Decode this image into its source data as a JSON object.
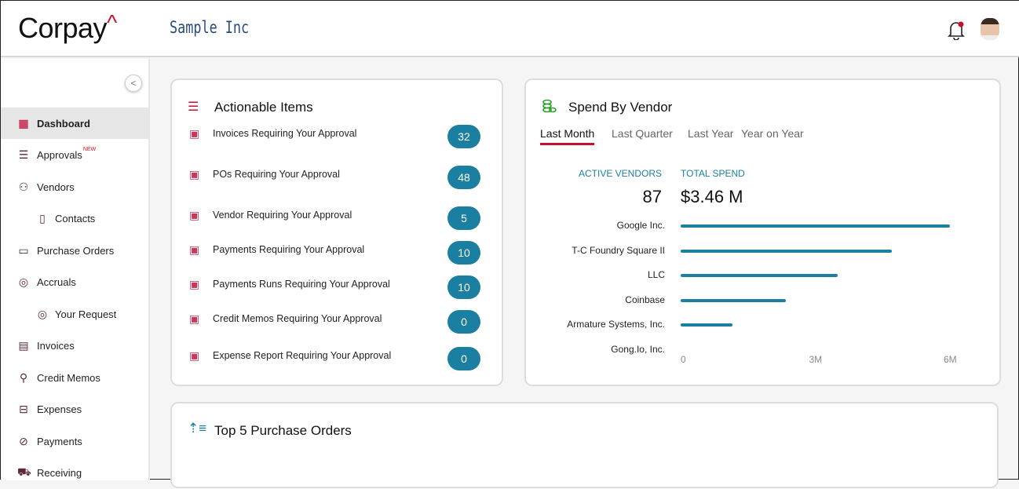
{
  "header": {
    "logo": "Corpay",
    "logo_mark": "^",
    "company": "Sample Inc"
  },
  "sidebar": {
    "items": [
      {
        "label": "Dashboard",
        "icon": "dashboard-icon",
        "active": true
      },
      {
        "label": "Approvals",
        "icon": "checklist-icon",
        "badge": "NEW"
      },
      {
        "label": "Vendors",
        "icon": "users-icon"
      },
      {
        "label": "Contacts",
        "icon": "contacts-icon",
        "sub": true
      },
      {
        "label": "Purchase Orders",
        "icon": "wallet-icon"
      },
      {
        "label": "Accruals",
        "icon": "target-icon"
      },
      {
        "label": "Your Request",
        "icon": "target-icon",
        "sub": true
      },
      {
        "label": "Invoices",
        "icon": "invoice-icon"
      },
      {
        "label": "Credit Memos",
        "icon": "credit-memo-icon"
      },
      {
        "label": "Expenses",
        "icon": "inbox-icon"
      },
      {
        "label": "Payments",
        "icon": "payments-icon"
      },
      {
        "label": "Receiving",
        "icon": "cart-icon"
      }
    ]
  },
  "actionable": {
    "title": "Actionable Items",
    "items": [
      {
        "label": "Invoices Requiring Your Approval",
        "count": "32"
      },
      {
        "label": "POs Requiring Your Approval",
        "count": "48"
      },
      {
        "label": "Vendor Requiring Your Approval",
        "count": "5"
      },
      {
        "label": "Payments Requiring Your Approval",
        "count": "10"
      },
      {
        "label": "Payments Runs Requiring Your Approval",
        "count": "10"
      },
      {
        "label": "Credit Memos Requiring Your Approval",
        "count": "0"
      },
      {
        "label": "Expense Report Requiring Your Approval",
        "count": "0"
      }
    ]
  },
  "spend": {
    "title": "Spend By Vendor",
    "tabs": [
      "Last Month",
      "Last Quarter",
      "Last Year",
      "Year on Year"
    ],
    "active_tab": "Last Month",
    "active_vendors_label": "ACTIVE VENDORS",
    "active_vendors": "87",
    "total_spend_label": "TOTAL SPEND",
    "total_spend": "$3.46 M"
  },
  "chart_data": {
    "type": "bar",
    "orientation": "horizontal",
    "categories": [
      "Google Inc.",
      "T-C Foundry Square II",
      "LLC",
      "Coinbase",
      "Armature Systems, Inc.",
      "Gong.Io, Inc."
    ],
    "values": [
      6.0,
      4.7,
      3.5,
      2.35,
      1.15,
      0
    ],
    "unit": "M",
    "xlim": [
      0,
      6
    ],
    "xticks": [
      "0",
      "3M",
      "6M"
    ],
    "color": "#1a7fa0",
    "grid": false
  },
  "top_po": {
    "title": "Top 5 Purchase Orders"
  },
  "colors": {
    "accent": "#c8102e",
    "primary": "#1a7fa0"
  }
}
